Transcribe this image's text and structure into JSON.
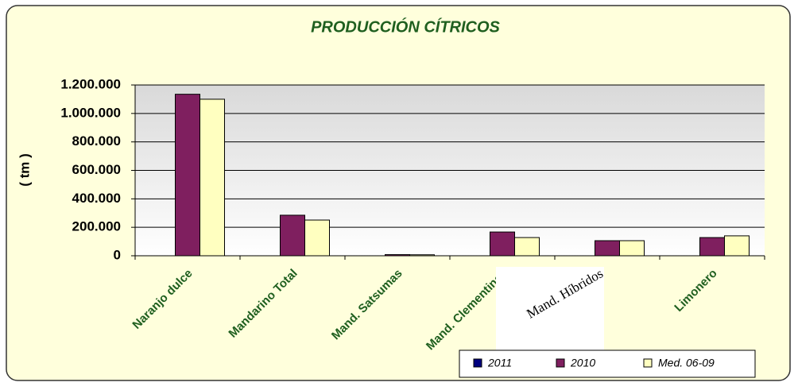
{
  "chart_data": {
    "type": "bar",
    "title": "PRODUCCIÓN CÍTRICOS",
    "y_label": "( tm )",
    "categories": [
      "Naranjo dulce",
      "Mandarino Total",
      "Mand. Satsumas",
      "Mand. Clementinas",
      "Mand. Híbridos",
      "Limonero"
    ],
    "series": [
      {
        "name": "2011",
        "color": "#00007f",
        "values": [
          0,
          0,
          0,
          0,
          0,
          0
        ]
      },
      {
        "name": "2010",
        "color": "#7f1f5f",
        "values": [
          1135000,
          285000,
          8000,
          167000,
          106000,
          128000
        ]
      },
      {
        "name": "Med. 06-09",
        "color": "#ffffc0",
        "values": [
          1100000,
          251000,
          7000,
          128000,
          106000,
          140000
        ]
      }
    ],
    "ylim": [
      0,
      1200000
    ],
    "yticks": [
      0,
      {
        "value": 200000,
        "label": "200.000"
      },
      {
        "value": 400000,
        "label": "400.000"
      },
      {
        "value": 600000,
        "label": "600.000"
      },
      {
        "value": 800000,
        "label": "800.000"
      },
      {
        "value": 1000000,
        "label": "1.000.000"
      },
      {
        "value": 1200000,
        "label": "1.200.000"
      }
    ],
    "grid": true,
    "legend": "bottom-right"
  }
}
